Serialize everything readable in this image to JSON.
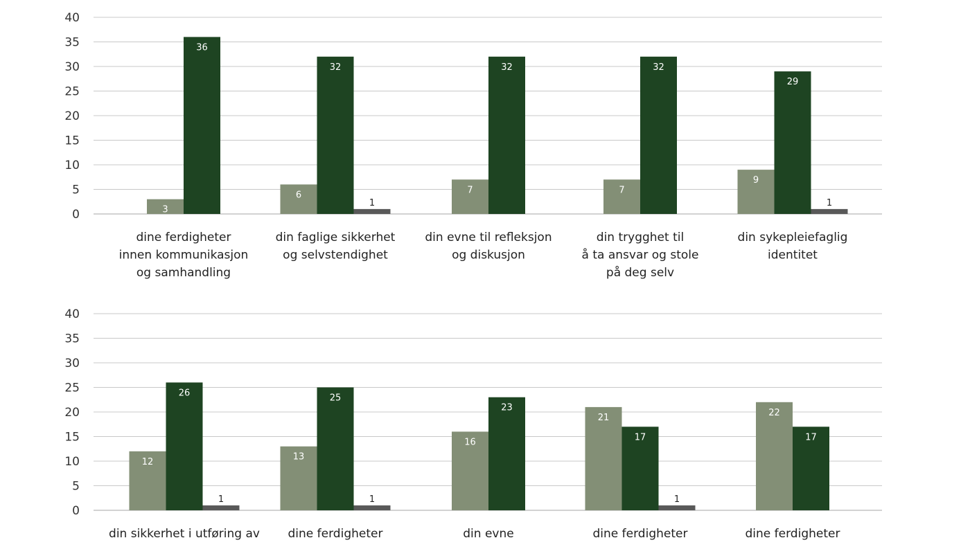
{
  "chart_data": [
    {
      "type": "bar",
      "ylim": [
        0,
        40
      ],
      "yticks": [
        0,
        5,
        10,
        15,
        20,
        25,
        30,
        35,
        40
      ],
      "grid": true,
      "categories": [
        [
          "dine ferdigheter",
          "innen kommunikasjon",
          "og samhandling"
        ],
        [
          "din faglige sikkerhet",
          "og selvstendighet"
        ],
        [
          "din evne til refleksjon",
          "og diskusjon"
        ],
        [
          "din trygghet til",
          "å ta ansvar og stole",
          "på deg selv"
        ],
        [
          "din sykepleiefaglig",
          "identitet"
        ]
      ],
      "series": [
        {
          "color": "#838f76",
          "values": [
            3,
            6,
            7,
            7,
            9
          ]
        },
        {
          "color": "#1e4422",
          "values": [
            36,
            32,
            32,
            32,
            29
          ]
        },
        {
          "color": "#595959",
          "values": [
            0,
            1,
            0,
            0,
            1
          ]
        }
      ]
    },
    {
      "type": "bar",
      "ylim": [
        0,
        40
      ],
      "yticks": [
        0,
        5,
        10,
        15,
        20,
        25,
        30,
        35,
        40
      ],
      "grid": true,
      "categories": [
        [
          "din sikkerhet i utføring av"
        ],
        [
          "dine ferdigheter"
        ],
        [
          "din evne"
        ],
        [
          "dine ferdigheter"
        ],
        [
          "dine ferdigheter"
        ]
      ],
      "series": [
        {
          "color": "#838f76",
          "values": [
            12,
            13,
            16,
            21,
            22
          ]
        },
        {
          "color": "#1e4422",
          "values": [
            26,
            25,
            23,
            17,
            17
          ]
        },
        {
          "color": "#595959",
          "values": [
            1,
            1,
            0,
            1,
            0
          ]
        }
      ]
    }
  ]
}
